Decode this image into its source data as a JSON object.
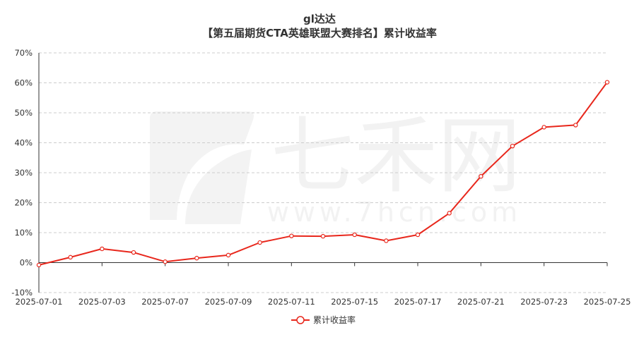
{
  "chart_data": {
    "type": "line",
    "title": "gl达达",
    "subtitle": "【第五届期货CTA英雄联盟大赛排名】累计收益率",
    "xlabel": "",
    "ylabel": "",
    "ylim": [
      -10,
      70
    ],
    "y_ticks": [
      "-10%",
      "0%",
      "10%",
      "20%",
      "30%",
      "40%",
      "50%",
      "60%",
      "70%"
    ],
    "y_tick_values": [
      -10,
      0,
      10,
      20,
      30,
      40,
      50,
      60,
      70
    ],
    "x_tick_labels": [
      "2025-07-01",
      "2025-07-03",
      "2025-07-07",
      "2025-07-09",
      "2025-07-11",
      "2025-07-15",
      "2025-07-17",
      "2025-07-21",
      "2025-07-23",
      "2025-07-25"
    ],
    "categories": [
      "2025-07-01",
      "2025-07-02",
      "2025-07-03",
      "2025-07-04",
      "2025-07-07",
      "2025-07-08",
      "2025-07-09",
      "2025-07-10",
      "2025-07-11",
      "2025-07-14",
      "2025-07-15",
      "2025-07-16",
      "2025-07-17",
      "2025-07-18",
      "2025-07-21",
      "2025-07-22",
      "2025-07-23",
      "2025-07-24",
      "2025-07-25"
    ],
    "grid": true,
    "legend_position": "bottom-center",
    "series": [
      {
        "name": "累计收益率",
        "color": "#e8271c",
        "values": [
          -0.8,
          1.8,
          4.6,
          3.4,
          0.3,
          1.5,
          2.5,
          6.7,
          8.9,
          8.8,
          9.3,
          7.3,
          9.3,
          16.5,
          28.8,
          38.9,
          45.2,
          45.9,
          60.2
        ]
      }
    ]
  },
  "watermark": {
    "brand_text": "七禾网",
    "url_text": "www.7hcn.com"
  }
}
